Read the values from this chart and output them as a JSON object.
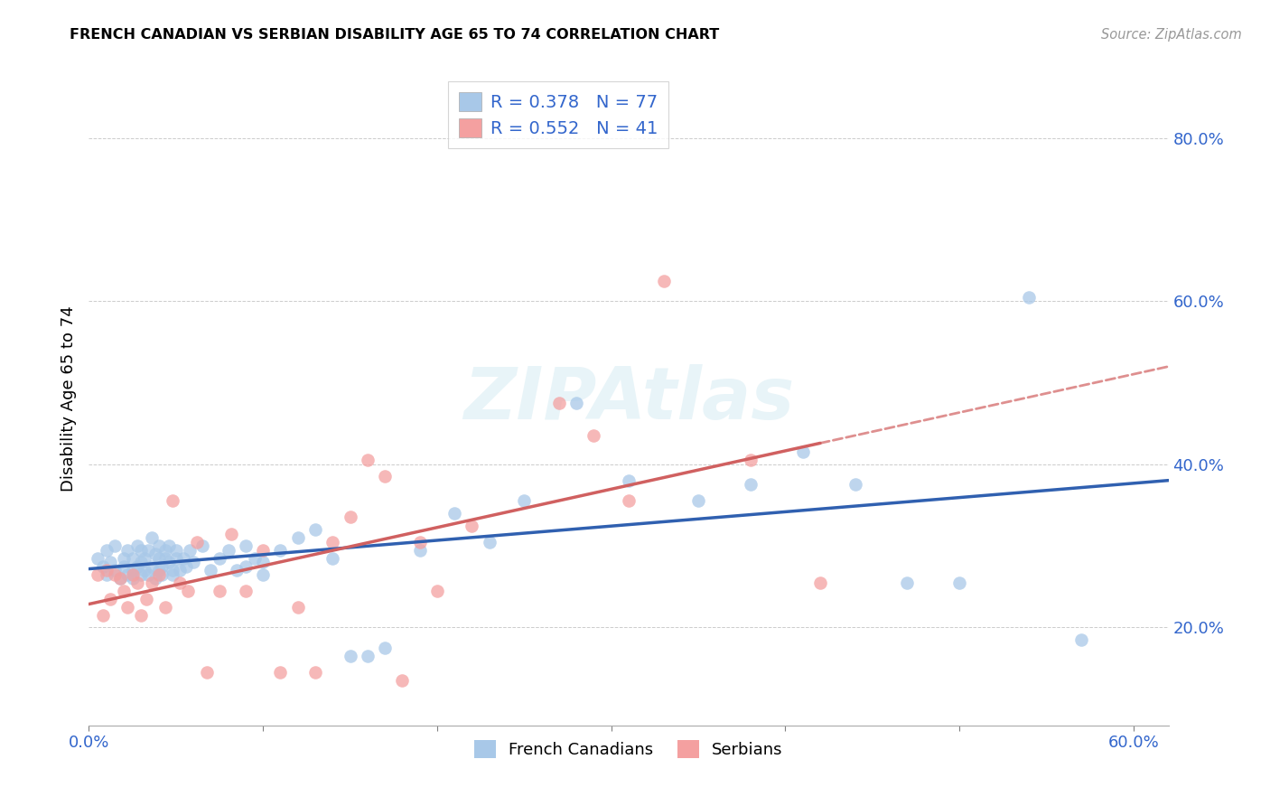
{
  "title": "FRENCH CANADIAN VS SERBIAN DISABILITY AGE 65 TO 74 CORRELATION CHART",
  "source": "Source: ZipAtlas.com",
  "ylabel": "Disability Age 65 to 74",
  "xlim": [
    0.0,
    0.62
  ],
  "ylim": [
    0.08,
    0.88
  ],
  "xticks": [
    0.0,
    0.1,
    0.2,
    0.3,
    0.4,
    0.5,
    0.6
  ],
  "yticks": [
    0.2,
    0.4,
    0.6,
    0.8
  ],
  "blue_R": 0.378,
  "blue_N": 77,
  "pink_R": 0.552,
  "pink_N": 41,
  "blue_color": "#a8c8e8",
  "pink_color": "#f4a0a0",
  "blue_line_color": "#3060b0",
  "pink_line_color": "#d06060",
  "french_canadian_x": [
    0.005,
    0.008,
    0.01,
    0.01,
    0.012,
    0.015,
    0.015,
    0.018,
    0.02,
    0.02,
    0.022,
    0.022,
    0.025,
    0.025,
    0.025,
    0.028,
    0.028,
    0.03,
    0.03,
    0.03,
    0.032,
    0.032,
    0.034,
    0.034,
    0.036,
    0.036,
    0.038,
    0.038,
    0.04,
    0.04,
    0.04,
    0.042,
    0.042,
    0.044,
    0.044,
    0.046,
    0.046,
    0.048,
    0.048,
    0.05,
    0.05,
    0.052,
    0.054,
    0.056,
    0.058,
    0.06,
    0.065,
    0.07,
    0.075,
    0.08,
    0.085,
    0.09,
    0.09,
    0.095,
    0.1,
    0.1,
    0.11,
    0.12,
    0.13,
    0.14,
    0.15,
    0.16,
    0.17,
    0.19,
    0.21,
    0.23,
    0.25,
    0.28,
    0.31,
    0.35,
    0.38,
    0.41,
    0.44,
    0.47,
    0.5,
    0.54,
    0.57
  ],
  "french_canadian_y": [
    0.285,
    0.275,
    0.295,
    0.265,
    0.28,
    0.27,
    0.3,
    0.26,
    0.275,
    0.285,
    0.265,
    0.295,
    0.27,
    0.285,
    0.26,
    0.275,
    0.3,
    0.265,
    0.28,
    0.295,
    0.27,
    0.285,
    0.265,
    0.295,
    0.275,
    0.31,
    0.26,
    0.29,
    0.27,
    0.285,
    0.3,
    0.275,
    0.265,
    0.285,
    0.295,
    0.28,
    0.3,
    0.27,
    0.265,
    0.285,
    0.295,
    0.27,
    0.285,
    0.275,
    0.295,
    0.28,
    0.3,
    0.27,
    0.285,
    0.295,
    0.27,
    0.3,
    0.275,
    0.285,
    0.28,
    0.265,
    0.295,
    0.31,
    0.32,
    0.285,
    0.165,
    0.165,
    0.175,
    0.295,
    0.34,
    0.305,
    0.355,
    0.475,
    0.38,
    0.355,
    0.375,
    0.415,
    0.375,
    0.255,
    0.255,
    0.605,
    0.185
  ],
  "serbian_x": [
    0.005,
    0.008,
    0.01,
    0.012,
    0.015,
    0.018,
    0.02,
    0.022,
    0.025,
    0.028,
    0.03,
    0.033,
    0.036,
    0.04,
    0.044,
    0.048,
    0.052,
    0.057,
    0.062,
    0.068,
    0.075,
    0.082,
    0.09,
    0.1,
    0.11,
    0.12,
    0.13,
    0.14,
    0.15,
    0.16,
    0.17,
    0.18,
    0.19,
    0.2,
    0.22,
    0.27,
    0.29,
    0.31,
    0.33,
    0.38,
    0.42
  ],
  "serbian_y": [
    0.265,
    0.215,
    0.27,
    0.235,
    0.265,
    0.26,
    0.245,
    0.225,
    0.265,
    0.255,
    0.215,
    0.235,
    0.255,
    0.265,
    0.225,
    0.355,
    0.255,
    0.245,
    0.305,
    0.145,
    0.245,
    0.315,
    0.245,
    0.295,
    0.145,
    0.225,
    0.145,
    0.305,
    0.335,
    0.405,
    0.385,
    0.135,
    0.305,
    0.245,
    0.325,
    0.475,
    0.435,
    0.355,
    0.625,
    0.405,
    0.255
  ]
}
